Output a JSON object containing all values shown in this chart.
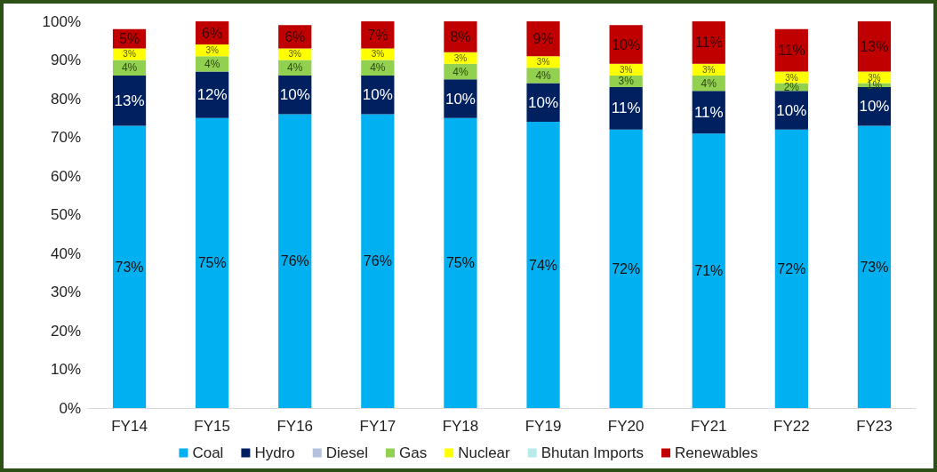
{
  "chart_data": {
    "type": "bar",
    "stacked": true,
    "categories": [
      "FY14",
      "FY15",
      "FY16",
      "FY17",
      "FY18",
      "FY19",
      "FY20",
      "FY21",
      "FY22",
      "FY23"
    ],
    "series": [
      {
        "name": "Coal",
        "color": "#00b0f0",
        "values": [
          73,
          75,
          76,
          76,
          75,
          74,
          72,
          71,
          72,
          73
        ],
        "value_labels": [
          "73%",
          "75%",
          "76%",
          "76%",
          "75%",
          "74%",
          "72%",
          "71%",
          "72%",
          "73%"
        ]
      },
      {
        "name": "Hydro",
        "color": "#002060",
        "values": [
          13,
          12,
          10,
          10,
          10,
          10,
          11,
          11,
          10,
          10
        ],
        "value_labels": [
          "13%",
          "12%",
          "10%",
          "10%",
          "10%",
          "10%",
          "11%",
          "11%",
          "10%",
          "10%"
        ]
      },
      {
        "name": "Diesel",
        "color": "#b4c0dc",
        "values": [
          null,
          null,
          null,
          null,
          null,
          null,
          null,
          null,
          null,
          null
        ]
      },
      {
        "name": "Gas",
        "color": "#92d050",
        "values": [
          4,
          4,
          4,
          4,
          4,
          4,
          3,
          4,
          2,
          1
        ],
        "value_labels": [
          "4%",
          "4%",
          "4%",
          "4%",
          "4%",
          "4%",
          "3%",
          "4%",
          "2%",
          "1%"
        ]
      },
      {
        "name": "Nuclear",
        "color": "#ffff00",
        "values": [
          3,
          3,
          3,
          3,
          3,
          3,
          3,
          3,
          3,
          3
        ],
        "value_labels": [
          "3%",
          "3%",
          "3%",
          "3%",
          "3%",
          "3%",
          "3%",
          "3%",
          "3%",
          "3%"
        ]
      },
      {
        "name": "Bhutan Imports",
        "color": "#b7ebeb",
        "values": [
          null,
          null,
          null,
          null,
          null,
          null,
          null,
          null,
          null,
          null
        ]
      },
      {
        "name": "Renewables",
        "color": "#c00000",
        "values": [
          5,
          6,
          6,
          7,
          8,
          9,
          10,
          11,
          11,
          13
        ],
        "value_labels": [
          "5%",
          "6%",
          "6%",
          "7%",
          "8%",
          "9%",
          "10%",
          "11%",
          "11%",
          "13%"
        ]
      }
    ],
    "ylim": [
      0,
      100
    ],
    "yticks": [
      {
        "value": 0,
        "label": "0%"
      },
      {
        "value": 10,
        "label": "10%"
      },
      {
        "value": 20,
        "label": "20%"
      },
      {
        "value": 30,
        "label": "30%"
      },
      {
        "value": 40,
        "label": "40%"
      },
      {
        "value": 50,
        "label": "50%"
      },
      {
        "value": 60,
        "label": "60%"
      },
      {
        "value": 70,
        "label": "70%"
      },
      {
        "value": 80,
        "label": "80%"
      },
      {
        "value": 90,
        "label": "90%"
      },
      {
        "value": 100,
        "label": "100%"
      }
    ],
    "grid": false,
    "legend": "bottom"
  }
}
